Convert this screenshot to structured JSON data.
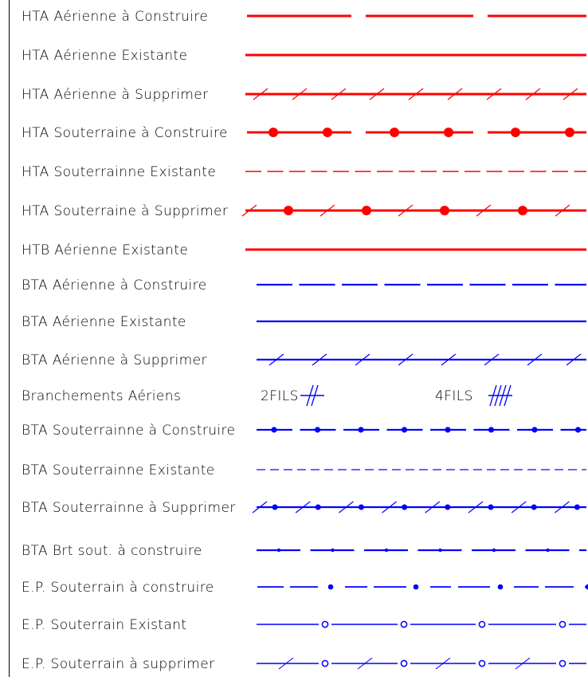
{
  "rows": [
    {
      "label": "HTA Aérienne à Construire",
      "color": "#ff0000",
      "style": "long-dash"
    },
    {
      "label": "HTA Aérienne  Existante",
      "color": "#ff0000",
      "style": "solid"
    },
    {
      "label": "HTA Aérienne à Supprimer",
      "color": "#ff0000",
      "style": "solid-slashes"
    },
    {
      "label": "HTA Souterraine à Construire",
      "color": "#ff0000",
      "style": "dash-dots"
    },
    {
      "label": "HTA Souterrainne Existante",
      "color": "#ff0000",
      "style": "dashed"
    },
    {
      "label": "HTA Souterraine à Supprimer",
      "color": "#ff0000",
      "style": "solid-slash-dots"
    },
    {
      "label": "HTB Aérienne Existante",
      "color": "#ff0000",
      "style": "solid"
    },
    {
      "label": "BTA Aérienne à Construire",
      "color": "#0000ff",
      "style": "long-dash"
    },
    {
      "label": "BTA Aérienne Existante",
      "color": "#0000ff",
      "style": "solid"
    },
    {
      "label": "BTA Aérienne à Supprimer",
      "color": "#0000ff",
      "style": "solid-slashes"
    },
    {
      "label": "Branchements  Aériens",
      "color": "#0000ff",
      "style": "branchements",
      "items": [
        {
          "label": "2FILS",
          "ticks": 2
        },
        {
          "label": "4FILS",
          "ticks": 4
        }
      ]
    },
    {
      "label": "BTA Souterrainne à Construire",
      "color": "#0000ff",
      "style": "dash-dots"
    },
    {
      "label": "BTA Souterrainne Existante",
      "color": "#0000ff",
      "style": "dashed"
    },
    {
      "label": "BTA Souterrainne à Supprimer",
      "color": "#0000ff",
      "style": "solid-slash-dots"
    },
    {
      "label": "BTA Brt sout. à construire",
      "color": "#0000ff",
      "style": "dash-small-dots"
    },
    {
      "label": "E.P. Souterrain à construire",
      "color": "#0000ff",
      "style": "dash-dot-dash"
    },
    {
      "label": "E.P. Souterrain Existant",
      "color": "#0000ff",
      "style": "solid-circles"
    },
    {
      "label": "E.P. Souterrain à supprimer",
      "color": "#0000ff",
      "style": "solid-slash-circles"
    }
  ]
}
